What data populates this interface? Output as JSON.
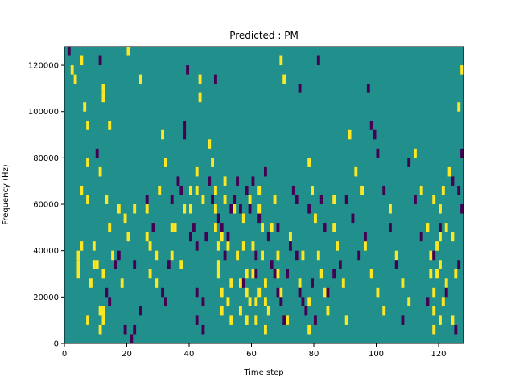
{
  "chart_data": {
    "type": "heatmap",
    "title": "Predicted : PM",
    "xlabel": "Time step",
    "ylabel": "Frequency (Hz)",
    "xlim": [
      0,
      128
    ],
    "ylim": [
      0,
      128000
    ],
    "x_ticks": [
      0,
      20,
      40,
      60,
      80,
      100,
      120
    ],
    "y_ticks": [
      0,
      20000,
      40000,
      60000,
      80000,
      100000,
      120000
    ],
    "x_tick_labels": [
      "0",
      "20",
      "40",
      "60",
      "80",
      "100",
      "120"
    ],
    "y_tick_labels": [
      "0",
      "20000",
      "40000",
      "60000",
      "80000",
      "100000",
      "120000"
    ],
    "grid": false,
    "legend": "none",
    "colormap": "viridis",
    "colors": {
      "background_cell": "#21908d",
      "high_cell": "#fde725",
      "low_cell": "#440154"
    },
    "cell_size": {
      "time_steps": 1,
      "frequency_hz": 4000
    },
    "cells_high": [
      [
        2,
        116000
      ],
      [
        3,
        112000
      ],
      [
        4,
        36000
      ],
      [
        4,
        32000
      ],
      [
        4,
        28000
      ],
      [
        5,
        120000
      ],
      [
        5,
        64000
      ],
      [
        5,
        40000
      ],
      [
        7,
        60000
      ],
      [
        7,
        8000
      ],
      [
        8,
        24000
      ],
      [
        6,
        100000
      ],
      [
        7,
        92000
      ],
      [
        7,
        76000
      ],
      [
        9,
        40000
      ],
      [
        9,
        32000
      ],
      [
        10,
        32000
      ],
      [
        11,
        4000
      ],
      [
        11,
        12000
      ],
      [
        12,
        8000
      ],
      [
        12,
        28000
      ],
      [
        11,
        72000
      ],
      [
        12,
        12000
      ],
      [
        12,
        108000
      ],
      [
        12,
        104000
      ],
      [
        14,
        92000
      ],
      [
        13,
        60000
      ],
      [
        14,
        48000
      ],
      [
        15,
        36000
      ],
      [
        17,
        56000
      ],
      [
        18,
        24000
      ],
      [
        19,
        52000
      ],
      [
        20,
        124000
      ],
      [
        20,
        44000
      ],
      [
        22,
        56000
      ],
      [
        24,
        112000
      ],
      [
        26,
        56000
      ],
      [
        26,
        44000
      ],
      [
        27,
        28000
      ],
      [
        27,
        40000
      ],
      [
        29,
        24000
      ],
      [
        29,
        36000
      ],
      [
        30,
        64000
      ],
      [
        31,
        88000
      ],
      [
        32,
        76000
      ],
      [
        34,
        48000
      ],
      [
        34,
        36000
      ],
      [
        35,
        48000
      ],
      [
        37,
        32000
      ],
      [
        38,
        56000
      ],
      [
        40,
        56000
      ],
      [
        40,
        64000
      ],
      [
        42,
        72000
      ],
      [
        42,
        64000
      ],
      [
        43,
        104000
      ],
      [
        43,
        112000
      ],
      [
        44,
        60000
      ],
      [
        46,
        84000
      ],
      [
        47,
        76000
      ],
      [
        48,
        64000
      ],
      [
        48,
        56000
      ],
      [
        48,
        48000
      ],
      [
        49,
        40000
      ],
      [
        49,
        32000
      ],
      [
        49,
        28000
      ],
      [
        50,
        12000
      ],
      [
        50,
        20000
      ],
      [
        50,
        44000
      ],
      [
        51,
        60000
      ],
      [
        51,
        68000
      ],
      [
        52,
        16000
      ],
      [
        52,
        40000
      ],
      [
        53,
        8000
      ],
      [
        53,
        24000
      ],
      [
        54,
        56000
      ],
      [
        55,
        36000
      ],
      [
        56,
        24000
      ],
      [
        56,
        12000
      ],
      [
        57,
        40000
      ],
      [
        57,
        52000
      ],
      [
        58,
        28000
      ],
      [
        58,
        20000
      ],
      [
        58,
        8000
      ],
      [
        59,
        60000
      ],
      [
        59,
        16000
      ],
      [
        60,
        40000
      ],
      [
        60,
        28000
      ],
      [
        61,
        16000
      ],
      [
        61,
        8000
      ],
      [
        62,
        20000
      ],
      [
        62,
        64000
      ],
      [
        62,
        56000
      ],
      [
        63,
        48000
      ],
      [
        63,
        36000
      ],
      [
        64,
        24000
      ],
      [
        64,
        16000
      ],
      [
        64,
        4000
      ],
      [
        65,
        12000
      ],
      [
        66,
        48000
      ],
      [
        67,
        60000
      ],
      [
        68,
        36000
      ],
      [
        68,
        28000
      ],
      [
        69,
        20000
      ],
      [
        69,
        120000
      ],
      [
        70,
        112000
      ],
      [
        71,
        8000
      ],
      [
        72,
        44000
      ],
      [
        75,
        24000
      ],
      [
        76,
        36000
      ],
      [
        78,
        16000
      ],
      [
        78,
        4000
      ],
      [
        78,
        76000
      ],
      [
        79,
        64000
      ],
      [
        80,
        52000
      ],
      [
        81,
        36000
      ],
      [
        82,
        28000
      ],
      [
        83,
        20000
      ],
      [
        84,
        12000
      ],
      [
        86,
        60000
      ],
      [
        86,
        48000
      ],
      [
        87,
        40000
      ],
      [
        88,
        32000
      ],
      [
        89,
        24000
      ],
      [
        90,
        8000
      ],
      [
        91,
        88000
      ],
      [
        93,
        72000
      ],
      [
        95,
        64000
      ],
      [
        96,
        40000
      ],
      [
        98,
        28000
      ],
      [
        100,
        20000
      ],
      [
        102,
        12000
      ],
      [
        104,
        56000
      ],
      [
        106,
        36000
      ],
      [
        108,
        24000
      ],
      [
        110,
        16000
      ],
      [
        112,
        80000
      ],
      [
        114,
        64000
      ],
      [
        116,
        48000
      ],
      [
        117,
        36000
      ],
      [
        117,
        28000
      ],
      [
        118,
        20000
      ],
      [
        118,
        60000
      ],
      [
        118,
        12000
      ],
      [
        118,
        4000
      ],
      [
        119,
        40000
      ],
      [
        119,
        28000
      ],
      [
        120,
        32000
      ],
      [
        120,
        44000
      ],
      [
        120,
        56000
      ],
      [
        120,
        8000
      ],
      [
        121,
        16000
      ],
      [
        121,
        64000
      ],
      [
        122,
        24000
      ],
      [
        122,
        48000
      ],
      [
        123,
        72000
      ],
      [
        124,
        8000
      ],
      [
        124,
        44000
      ],
      [
        125,
        28000
      ],
      [
        126,
        100000
      ],
      [
        127,
        116000
      ]
    ],
    "cells_low": [
      [
        1,
        124000
      ],
      [
        10,
        80000
      ],
      [
        11,
        120000
      ],
      [
        13,
        20000
      ],
      [
        14,
        16000
      ],
      [
        16,
        32000
      ],
      [
        17,
        36000
      ],
      [
        19,
        4000
      ],
      [
        21,
        0
      ],
      [
        22,
        4000
      ],
      [
        22,
        32000
      ],
      [
        24,
        12000
      ],
      [
        26,
        60000
      ],
      [
        28,
        48000
      ],
      [
        31,
        20000
      ],
      [
        32,
        16000
      ],
      [
        33,
        32000
      ],
      [
        34,
        60000
      ],
      [
        36,
        68000
      ],
      [
        37,
        64000
      ],
      [
        38,
        92000
      ],
      [
        38,
        88000
      ],
      [
        39,
        116000
      ],
      [
        40,
        44000
      ],
      [
        41,
        48000
      ],
      [
        42,
        40000
      ],
      [
        42,
        20000
      ],
      [
        42,
        8000
      ],
      [
        44,
        16000
      ],
      [
        44,
        4000
      ],
      [
        45,
        44000
      ],
      [
        46,
        68000
      ],
      [
        47,
        60000
      ],
      [
        48,
        112000
      ],
      [
        49,
        52000
      ],
      [
        50,
        48000
      ],
      [
        51,
        36000
      ],
      [
        52,
        44000
      ],
      [
        53,
        56000
      ],
      [
        54,
        60000
      ],
      [
        55,
        68000
      ],
      [
        56,
        56000
      ],
      [
        57,
        24000
      ],
      [
        58,
        64000
      ],
      [
        59,
        56000
      ],
      [
        60,
        68000
      ],
      [
        61,
        36000
      ],
      [
        61,
        28000
      ],
      [
        62,
        52000
      ],
      [
        64,
        72000
      ],
      [
        65,
        44000
      ],
      [
        66,
        32000
      ],
      [
        67,
        28000
      ],
      [
        68,
        20000
      ],
      [
        68,
        48000
      ],
      [
        69,
        16000
      ],
      [
        70,
        8000
      ],
      [
        71,
        28000
      ],
      [
        72,
        40000
      ],
      [
        73,
        64000
      ],
      [
        74,
        60000
      ],
      [
        74,
        36000
      ],
      [
        75,
        20000
      ],
      [
        75,
        108000
      ],
      [
        76,
        16000
      ],
      [
        77,
        12000
      ],
      [
        78,
        56000
      ],
      [
        79,
        24000
      ],
      [
        80,
        8000
      ],
      [
        81,
        120000
      ],
      [
        82,
        60000
      ],
      [
        83,
        48000
      ],
      [
        84,
        20000
      ],
      [
        86,
        28000
      ],
      [
        88,
        32000
      ],
      [
        90,
        60000
      ],
      [
        92,
        52000
      ],
      [
        94,
        36000
      ],
      [
        96,
        44000
      ],
      [
        97,
        108000
      ],
      [
        98,
        92000
      ],
      [
        99,
        88000
      ],
      [
        100,
        80000
      ],
      [
        102,
        64000
      ],
      [
        104,
        48000
      ],
      [
        106,
        32000
      ],
      [
        108,
        8000
      ],
      [
        110,
        76000
      ],
      [
        112,
        60000
      ],
      [
        114,
        44000
      ],
      [
        116,
        16000
      ],
      [
        118,
        36000
      ],
      [
        120,
        48000
      ],
      [
        122,
        20000
      ],
      [
        124,
        68000
      ],
      [
        125,
        4000
      ],
      [
        126,
        64000
      ],
      [
        126,
        32000
      ],
      [
        127,
        56000
      ],
      [
        127,
        80000
      ]
    ]
  }
}
